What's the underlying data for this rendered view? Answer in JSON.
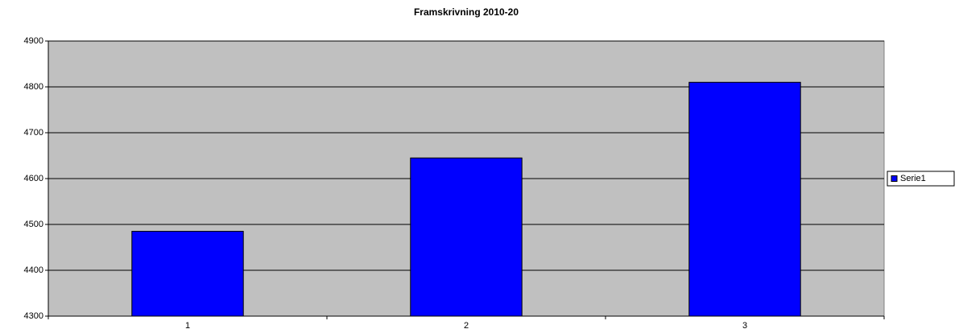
{
  "chart_data": {
    "type": "bar",
    "title": "Framskrivning 2010-20",
    "categories": [
      "1",
      "2",
      "3"
    ],
    "series": [
      {
        "name": "Serie1",
        "color": "#0000ff",
        "values": [
          4485,
          4645,
          4810
        ]
      }
    ],
    "ylim": [
      4300,
      4900
    ],
    "yticks": [
      4300,
      4400,
      4500,
      4600,
      4700,
      4800,
      4900
    ],
    "grid": true,
    "legend": "right"
  }
}
